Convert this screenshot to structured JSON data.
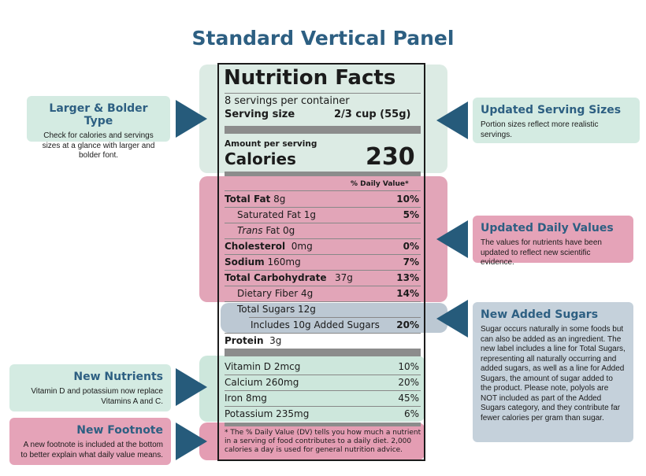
{
  "title": "Standard Vertical Panel",
  "colors": {
    "title": "#2d5f82",
    "arrow": "#265b7b",
    "green": "#d4ebe2",
    "pink": "#e5a3b8",
    "blue": "#c5d1db"
  },
  "label": {
    "heading": "Nutrition Facts",
    "servings": "8 servings per container",
    "serving_size_label": "Serving size",
    "serving_size_value": "2/3 cup (55g)",
    "amount_per_serving": "Amount per serving",
    "calories_label": "Calories",
    "calories_value": "230",
    "dv_header": "% Daily Value*",
    "rows": [
      {
        "label": "Total Fat",
        "amount": "8g",
        "dv": "10%"
      },
      {
        "label": "Saturated Fat 1g",
        "dv": "5%"
      },
      {
        "label_italic": "Trans",
        "label_rest": "Fat 0g"
      },
      {
        "label": "Cholesterol",
        "amount": "0mg",
        "dv": "0%"
      },
      {
        "label": "Sodium",
        "amount": "160mg",
        "dv": "7%"
      },
      {
        "label": "Total Carbohydrate",
        "amount": "37g",
        "dv": "13%"
      },
      {
        "label": "Dietary Fiber 4g",
        "dv": "14%"
      },
      {
        "label": "Total Sugars 12g"
      },
      {
        "label": "Includes 10g Added Sugars",
        "dv": "20%"
      },
      {
        "label": "Protein",
        "amount": "3g"
      }
    ],
    "vitamins": [
      {
        "label": "Vitamin D 2mcg",
        "dv": "10%"
      },
      {
        "label": "Calcium 260mg",
        "dv": "20%"
      },
      {
        "label": "Iron 8mg",
        "dv": "45%"
      },
      {
        "label": "Potassium 235mg",
        "dv": "6%"
      }
    ],
    "footnote": "* The % Daily Value (DV) tells you how much a nutrient in a serving of food contributes to a daily diet. 2,000 calories a day is used for general nutrition advice."
  },
  "callouts": {
    "larger": {
      "title": "Larger & Bolder Type",
      "text": "Check for calories and servings sizes at a glance with larger and bolder font."
    },
    "serving": {
      "title": "Updated Serving Sizes",
      "text": "Portion sizes reflect more realistic servings."
    },
    "daily": {
      "title": "Updated Daily Values",
      "text": "The values for nutrients have been updated to reflect new scientific evidence."
    },
    "sugars": {
      "title": "New Added Sugars",
      "text": "Sugar occurs naturally in some foods but can also be added as an ingredient. The new label includes a line for Total Sugars, representing all naturally occurring and added sugars, as well as a line for Added Sugars, the amount of sugar added to the product. Please note, polyols are NOT included as part of the Added Sugars category, and they contribute far fewer calories per gram than sugar."
    },
    "nutrients": {
      "title": "New Nutrients",
      "text": "Vitamin D and potassium now replace Vitamins A and C."
    },
    "footnote": {
      "title": "New Footnote",
      "text": "A new footnote is included at the bottom to better explain what daily value means."
    }
  }
}
